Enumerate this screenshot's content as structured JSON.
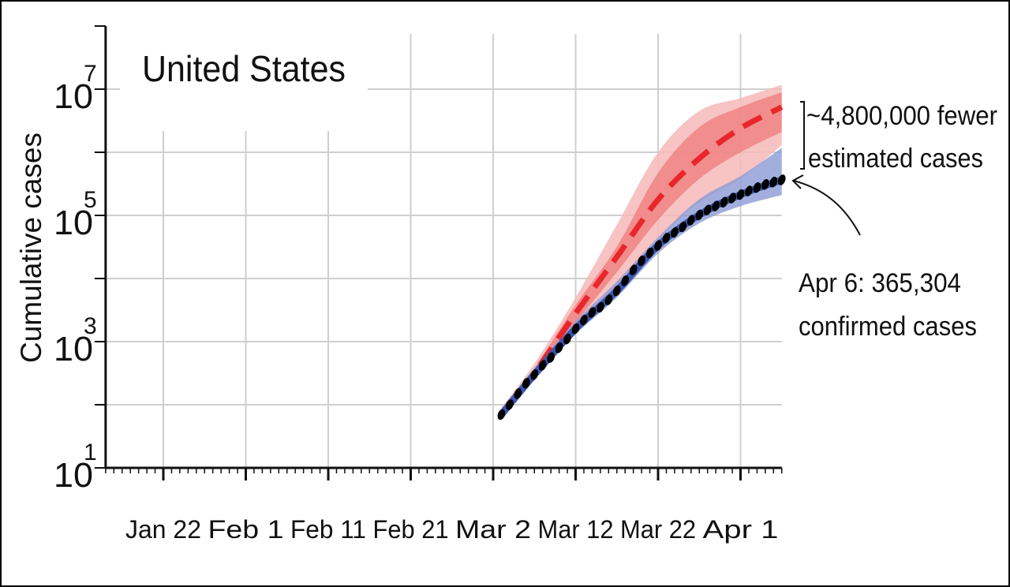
{
  "chart_data": {
    "type": "line",
    "title": "United States",
    "ylabel": "Cumulative cases",
    "xlabel": "",
    "y_scale": "log",
    "ylim": [
      10,
      100000000
    ],
    "y_ticks": [
      {
        "base": "10",
        "exp": "1"
      },
      {
        "base": "10",
        "exp": "3"
      },
      {
        "base": "10",
        "exp": "5"
      },
      {
        "base": "10",
        "exp": "7"
      }
    ],
    "xlim": [
      "Jan 15",
      "Apr 6"
    ],
    "x_ticks": [
      "Jan 22",
      "Feb 1",
      "Feb 11",
      "Feb 21",
      "Mar 2",
      "Mar 12",
      "Mar 22",
      "Apr 1"
    ],
    "grid": true,
    "colors": {
      "estimated": "#e8262b",
      "estimated_band_inner": "#ef7b7b",
      "estimated_band_outer": "#f6b9b9",
      "intervention": "#3a56b0",
      "intervention_band": "#8b9bd6",
      "confirmed": "#000000"
    },
    "series": [
      {
        "key": "confirmed",
        "style": "points",
        "x": [
          "Mar 3",
          "Mar 4",
          "Mar 5",
          "Mar 6",
          "Mar 7",
          "Mar 8",
          "Mar 9",
          "Mar 10",
          "Mar 11",
          "Mar 12",
          "Mar 13",
          "Mar 14",
          "Mar 15",
          "Mar 16",
          "Mar 17",
          "Mar 18",
          "Mar 19",
          "Mar 20",
          "Mar 21",
          "Mar 22",
          "Mar 23",
          "Mar 24",
          "Mar 25",
          "Mar 26",
          "Mar 27",
          "Mar 28",
          "Mar 29",
          "Mar 30",
          "Mar 31",
          "Apr 1",
          "Apr 2",
          "Apr 3",
          "Apr 4",
          "Apr 5",
          "Apr 6"
        ],
        "values": [
          70,
          100,
          150,
          220,
          300,
          420,
          560,
          800,
          1100,
          1600,
          2200,
          2900,
          3500,
          4600,
          6400,
          9200,
          13700,
          19100,
          25500,
          33300,
          43800,
          53700,
          65800,
          83800,
          101700,
          121500,
          140900,
          161800,
          188200,
          213400,
          243600,
          275600,
          308800,
          337100,
          365304
        ]
      },
      {
        "key": "intervention",
        "style": "dashed",
        "x": [
          "Mar 3",
          "Mar 7",
          "Mar 12",
          "Mar 17",
          "Mar 22",
          "Mar 27",
          "Apr 1",
          "Apr 6"
        ],
        "values": [
          70,
          300,
          1600,
          6400,
          33300,
          101700,
          213400,
          365304
        ],
        "lower": [
          60,
          260,
          1300,
          5000,
          25000,
          75000,
          140000,
          210000
        ],
        "upper": [
          85,
          380,
          2100,
          9000,
          45000,
          180000,
          420000,
          1170000
        ]
      },
      {
        "key": "estimated",
        "style": "dashed",
        "x": [
          "Mar 3",
          "Mar 7",
          "Mar 12",
          "Mar 17",
          "Mar 22",
          "Mar 27",
          "Apr 1",
          "Apr 6"
        ],
        "values": [
          70,
          320,
          2800,
          22000,
          178000,
          800000,
          2400000,
          5200000
        ],
        "inner_lower": [
          65,
          290,
          2000,
          12600,
          85000,
          380000,
          1000000,
          2100000
        ],
        "inner_upper": [
          80,
          380,
          3800,
          32000,
          470000,
          2500000,
          5200000,
          8900000
        ],
        "outer_lower": [
          60,
          260,
          1600,
          7000,
          40000,
          160000,
          380000,
          1300000
        ],
        "outer_upper": [
          90,
          450,
          5000,
          71000,
          1000000,
          4500000,
          7200000,
          11700000
        ]
      }
    ],
    "annotations": {
      "difference_line1": "~4,800,000 fewer",
      "difference_line2": "estimated cases",
      "confirmed_line1": "Apr 6: 365,304",
      "confirmed_line2": "confirmed cases"
    }
  }
}
